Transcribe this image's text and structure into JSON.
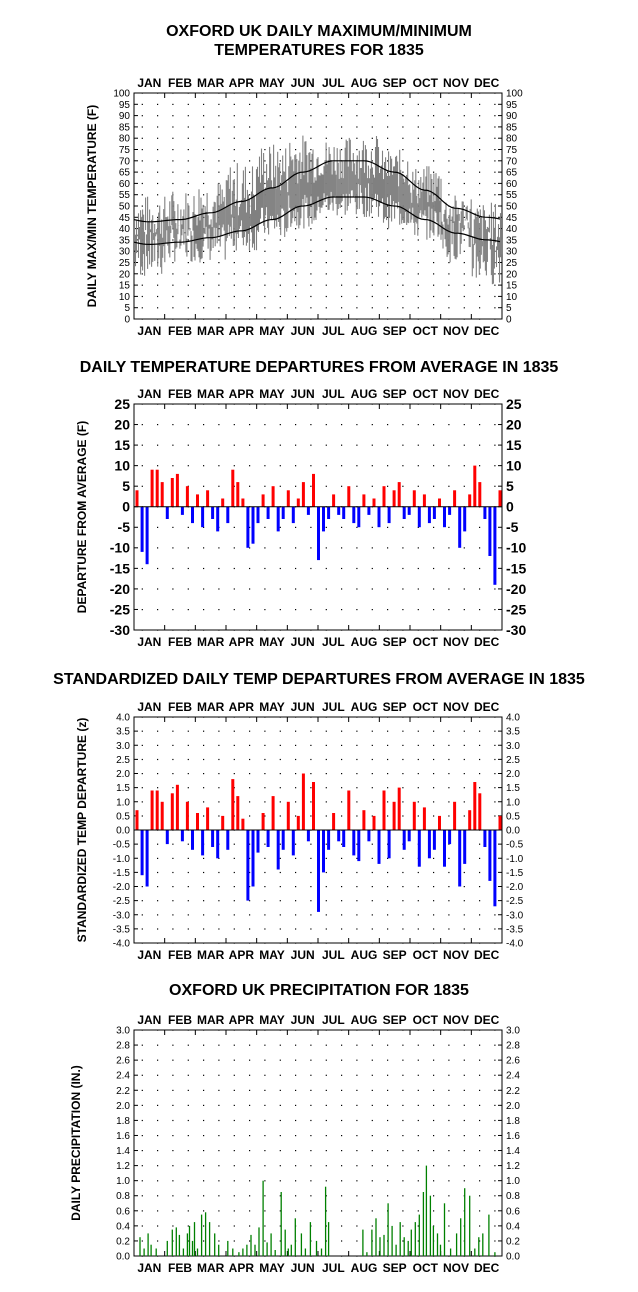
{
  "months": [
    "JAN",
    "FEB",
    "MAR",
    "APR",
    "MAY",
    "JUN",
    "JUL",
    "AUG",
    "SEP",
    "OCT",
    "NOV",
    "DEC"
  ],
  "chart_data": [
    {
      "type": "line",
      "title_line1": "OXFORD UK DAILY MAXIMUM/MINIMUM",
      "title_line2": "TEMPERATURES FOR 1835",
      "ylabel": "DAILY MAX/MIN TEMPERATURE (F)",
      "ylim": [
        0,
        100
      ],
      "yticks": [
        0,
        5,
        10,
        15,
        20,
        25,
        30,
        35,
        40,
        45,
        50,
        55,
        60,
        65,
        70,
        75,
        80,
        85,
        90,
        95,
        100
      ],
      "grid": true,
      "series": [
        {
          "name": "",
          "color": "#808080",
          "description_kind": "daily range bars"
        },
        {
          "name": "",
          "color": "#000000",
          "values": [
            43,
            44,
            47,
            52,
            58,
            65,
            70,
            70,
            65,
            57,
            49,
            45
          ]
        },
        {
          "name": "",
          "color": "#000000",
          "values": [
            33,
            34,
            36,
            39,
            44,
            50,
            54,
            54,
            50,
            44,
            38,
            35
          ]
        }
      ],
      "monthly_high_range": [
        [
          35,
          55
        ],
        [
          35,
          58
        ],
        [
          40,
          62
        ],
        [
          45,
          70
        ],
        [
          55,
          78
        ],
        [
          60,
          82
        ],
        [
          62,
          80
        ],
        [
          62,
          82
        ],
        [
          58,
          75
        ],
        [
          50,
          68
        ],
        [
          40,
          55
        ],
        [
          30,
          52
        ]
      ],
      "monthly_low_range": [
        [
          18,
          40
        ],
        [
          25,
          42
        ],
        [
          25,
          42
        ],
        [
          30,
          45
        ],
        [
          35,
          50
        ],
        [
          40,
          55
        ],
        [
          45,
          58
        ],
        [
          45,
          60
        ],
        [
          40,
          55
        ],
        [
          35,
          50
        ],
        [
          25,
          45
        ],
        [
          15,
          40
        ]
      ]
    },
    {
      "type": "bar",
      "title": "DAILY TEMPERATURE DEPARTURES FROM AVERAGE IN 1835",
      "ylabel": "DEPARTURE FROM AVERAGE (F)",
      "ylim": [
        -30,
        25
      ],
      "yticks": [
        -30,
        -25,
        -20,
        -15,
        -10,
        -5,
        0,
        5,
        10,
        15,
        20,
        25
      ],
      "grid": true,
      "positive_color": "#ff0000",
      "negative_color": "#0000ff",
      "x": [
        3,
        8,
        13,
        18,
        23,
        28,
        33,
        38,
        43,
        48,
        53,
        58,
        63,
        68,
        73,
        78,
        83,
        88,
        93,
        98,
        103,
        108,
        113,
        118,
        123,
        128,
        133,
        138,
        143,
        148,
        153,
        158,
        163,
        168,
        173,
        178,
        183,
        188,
        193,
        198,
        203,
        208,
        213,
        218,
        223,
        228,
        233,
        238,
        243,
        248,
        253,
        258,
        263,
        268,
        273,
        278,
        283,
        288,
        293,
        298,
        303,
        308,
        313,
        318,
        323,
        328,
        333,
        338,
        343,
        348,
        353,
        358,
        363
      ],
      "values": [
        4,
        -11,
        -14,
        9,
        9,
        6,
        -3,
        7,
        8,
        -2,
        5,
        -4,
        3,
        -5,
        4,
        -3,
        -6,
        2,
        -4,
        9,
        6,
        2,
        -10,
        -9,
        -4,
        3,
        -3,
        5,
        -6,
        -3,
        4,
        -4,
        2,
        6,
        -2,
        8,
        -13,
        -6,
        -3,
        3,
        -2,
        -3,
        5,
        -4,
        -5,
        3,
        -2,
        2,
        -5,
        5,
        -4,
        4,
        6,
        -3,
        -2,
        4,
        -5,
        3,
        -4,
        -3,
        2,
        -5,
        -2,
        4,
        -10,
        -6,
        3,
        10,
        6,
        -3,
        -12,
        -19,
        4
      ]
    },
    {
      "type": "bar",
      "title": "STANDARDIZED DAILY TEMP DEPARTURES FROM AVERAGE IN 1835",
      "ylabel": "STANDARDIZED TEMP DEPARTURE (z)",
      "ylim": [
        -4.0,
        4.0
      ],
      "yticks": [
        -4.0,
        -3.5,
        -3.0,
        -2.5,
        -2.0,
        -1.5,
        -1.0,
        -0.5,
        0.0,
        0.5,
        1.0,
        1.5,
        2.0,
        2.5,
        3.0,
        3.5,
        4.0
      ],
      "grid": true,
      "positive_color": "#ff0000",
      "negative_color": "#0000ff",
      "x": [
        3,
        8,
        13,
        18,
        23,
        28,
        33,
        38,
        43,
        48,
        53,
        58,
        63,
        68,
        73,
        78,
        83,
        88,
        93,
        98,
        103,
        108,
        113,
        118,
        123,
        128,
        133,
        138,
        143,
        148,
        153,
        158,
        163,
        168,
        173,
        178,
        183,
        188,
        193,
        198,
        203,
        208,
        213,
        218,
        223,
        228,
        233,
        238,
        243,
        248,
        253,
        258,
        263,
        268,
        273,
        278,
        283,
        288,
        293,
        298,
        303,
        308,
        313,
        318,
        323,
        328,
        333,
        338,
        343,
        348,
        353,
        358,
        363
      ],
      "values": [
        0.7,
        -1.6,
        -2.0,
        1.4,
        1.4,
        1.0,
        -0.5,
        1.3,
        1.6,
        -0.4,
        1.0,
        -0.7,
        0.6,
        -0.9,
        0.8,
        -0.6,
        -1.0,
        0.5,
        -0.7,
        1.8,
        1.2,
        0.4,
        -2.5,
        -2.0,
        -0.8,
        0.6,
        -0.6,
        1.2,
        -1.4,
        -0.7,
        1.0,
        -0.9,
        0.5,
        2.0,
        -0.4,
        1.7,
        -2.9,
        -1.5,
        -0.7,
        0.6,
        -0.4,
        -0.6,
        1.4,
        -0.9,
        -1.1,
        0.7,
        -0.4,
        0.5,
        -1.2,
        1.4,
        -1.0,
        1.0,
        1.5,
        -0.7,
        -0.4,
        1.0,
        -1.3,
        0.8,
        -1.0,
        -0.7,
        0.5,
        -1.3,
        -0.5,
        1.0,
        -2.0,
        -1.2,
        0.7,
        1.7,
        1.3,
        -0.6,
        -1.8,
        -2.7,
        0.5
      ]
    },
    {
      "type": "bar",
      "title": "OXFORD UK PRECIPITATION FOR 1835",
      "ylabel": "DAILY PRECIPITATION (IN.)",
      "ylim": [
        0,
        3.0
      ],
      "yticks": [
        0.0,
        0.2,
        0.4,
        0.6,
        0.8,
        1.0,
        1.2,
        1.4,
        1.6,
        1.8,
        2.0,
        2.2,
        2.4,
        2.6,
        2.8,
        3.0
      ],
      "grid": true,
      "color": "#008000",
      "x": [
        6,
        10,
        14,
        17,
        22,
        33,
        38,
        42,
        45,
        49,
        53,
        55,
        58,
        60,
        63,
        67,
        71,
        75,
        80,
        84,
        93,
        98,
        104,
        108,
        112,
        116,
        120,
        124,
        128,
        132,
        136,
        140,
        146,
        150,
        153,
        156,
        160,
        166,
        170,
        175,
        181,
        186,
        190,
        193,
        227,
        231,
        236,
        240,
        244,
        248,
        252,
        256,
        260,
        264,
        268,
        272,
        275,
        279,
        283,
        287,
        290,
        294,
        297,
        301,
        304,
        308,
        314,
        320,
        324,
        328,
        333,
        338,
        342,
        346,
        352,
        358
      ],
      "values": [
        0.25,
        0.1,
        0.3,
        0.15,
        0.1,
        0.2,
        0.35,
        0.38,
        0.28,
        0.1,
        0.3,
        0.4,
        0.2,
        0.45,
        0.1,
        0.55,
        0.58,
        0.45,
        0.3,
        0.15,
        0.2,
        0.1,
        0.05,
        0.1,
        0.15,
        0.28,
        0.15,
        0.38,
        1.0,
        0.18,
        0.3,
        0.08,
        0.85,
        0.35,
        0.1,
        0.15,
        0.5,
        0.3,
        0.1,
        0.45,
        0.2,
        0.1,
        0.92,
        0.45,
        0.35,
        0.05,
        0.35,
        0.5,
        0.25,
        0.28,
        0.7,
        0.4,
        0.15,
        0.45,
        0.25,
        0.2,
        0.35,
        0.45,
        0.55,
        0.85,
        1.2,
        0.8,
        0.4,
        0.3,
        0.15,
        0.7,
        0.1,
        0.3,
        0.5,
        0.9,
        0.8,
        0.1,
        0.25,
        0.3,
        0.55,
        0.05
      ]
    }
  ]
}
